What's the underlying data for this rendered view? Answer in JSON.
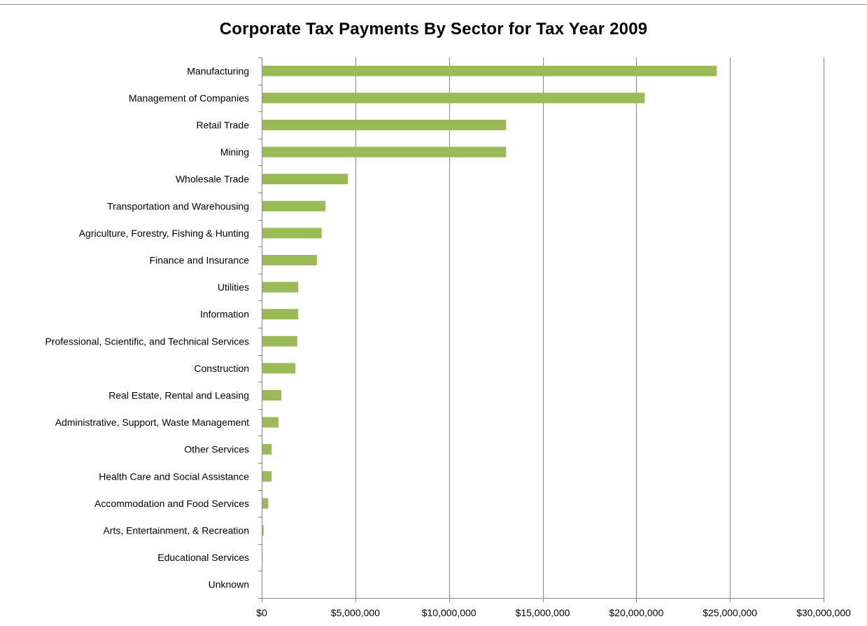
{
  "chart_data": {
    "type": "bar",
    "orientation": "horizontal",
    "title": "Corporate Tax Payments By Sector for Tax Year 2009",
    "xlabel": "",
    "ylabel": "",
    "categories": [
      "Manufacturing",
      "Management of Companies",
      "Retail Trade",
      "Mining",
      "Wholesale Trade",
      "Transportation and Warehousing",
      "Agriculture, Forestry, Fishing & Hunting",
      "Finance and Insurance",
      "Utilities",
      "Information",
      "Professional, Scientific, and Technical Services",
      "Construction",
      "Real Estate, Rental and Leasing",
      "Administrative, Support, Waste Management",
      "Other Services",
      "Health Care and Social Assistance",
      "Accommodation and Food Services",
      "Arts, Entertainment, & Recreation",
      "Educational Services",
      "Unknown"
    ],
    "values": [
      24300000,
      20450000,
      13050000,
      13050000,
      4600000,
      3400000,
      3200000,
      2950000,
      1950000,
      1950000,
      1900000,
      1800000,
      1050000,
      900000,
      530000,
      530000,
      350000,
      100000,
      50000,
      0
    ],
    "xlim": [
      0,
      30000000
    ],
    "x_ticks": [
      0,
      5000000,
      10000000,
      15000000,
      20000000,
      25000000,
      30000000
    ],
    "x_tick_labels": [
      "$0",
      "$5,000,000",
      "$10,000,000",
      "$15,000,000",
      "$20,000,000",
      "$25,000,000",
      "$30,000,000"
    ],
    "grid": "vertical",
    "legend": "none",
    "bar_color": "#9bbb59",
    "grid_color": "#868686",
    "axis_color": "#868686"
  }
}
